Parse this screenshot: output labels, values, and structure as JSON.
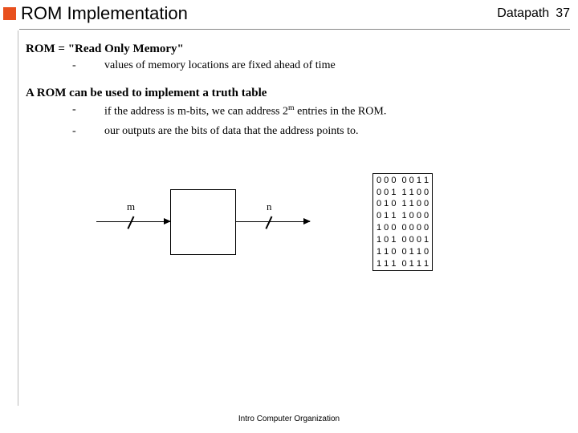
{
  "header": {
    "title": "ROM Implementation",
    "topic": "Datapath",
    "page": "37"
  },
  "sec1": {
    "heading": "ROM = \"Read Only Memory\"",
    "bullet1": "values of memory locations are fixed ahead of time"
  },
  "sec2": {
    "heading": "A ROM can be used to implement a truth table",
    "bullet1_a": "if the address is m-bits, we can address 2",
    "bullet1_sup": "m",
    "bullet1_b": " entries in the ROM.",
    "bullet2": "our outputs are the bits of data that the address points to."
  },
  "diagram": {
    "label_m": "m",
    "label_n": "n"
  },
  "table": {
    "rows": [
      [
        "0",
        "0",
        "0",
        "0",
        "0",
        "1",
        "1"
      ],
      [
        "0",
        "0",
        "1",
        "1",
        "1",
        "0",
        "0"
      ],
      [
        "0",
        "1",
        "0",
        "1",
        "1",
        "0",
        "0"
      ],
      [
        "0",
        "1",
        "1",
        "1",
        "0",
        "0",
        "0"
      ],
      [
        "1",
        "0",
        "0",
        "0",
        "0",
        "0",
        "0"
      ],
      [
        "1",
        "0",
        "1",
        "0",
        "0",
        "0",
        "1"
      ],
      [
        "1",
        "1",
        "0",
        "0",
        "1",
        "1",
        "0"
      ],
      [
        "1",
        "1",
        "1",
        "0",
        "1",
        "1",
        "1"
      ]
    ]
  },
  "footer": "Intro Computer Organization",
  "colors": {
    "accent": "#e8501e"
  }
}
